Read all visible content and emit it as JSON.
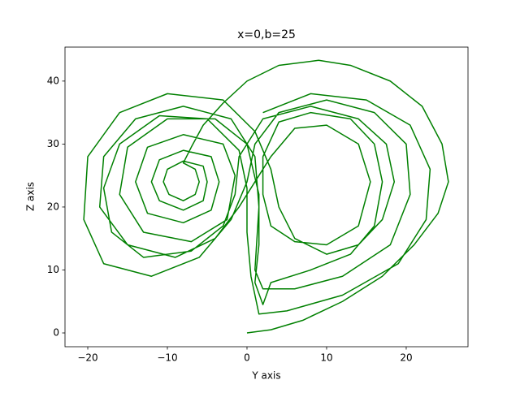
{
  "chart_data": {
    "type": "line",
    "title": "x=0,b=25",
    "xlabel": "Y axis",
    "ylabel": "Z axis",
    "color": "#008000",
    "x": [
      0,
      3,
      7,
      12,
      17,
      21,
      24,
      25.3,
      24.5,
      22,
      18,
      13,
      9,
      4,
      0,
      -3,
      -5.5,
      -7,
      -8,
      -6.5,
      -6,
      -6.5,
      -8,
      -9.8,
      -10.5,
      -10,
      -8,
      -5.5,
      -5,
      -5.5,
      -8,
      -11,
      -12,
      -11,
      -8,
      -4.5,
      -3.5,
      -4.5,
      -8,
      -12.5,
      -14,
      -12.5,
      -8,
      -3,
      -1.5,
      -2.5,
      -7,
      -13,
      -16,
      -15,
      -10,
      -4,
      0,
      1.5,
      1.5,
      1,
      2,
      3,
      8,
      13,
      16,
      17,
      16,
      13,
      8,
      4,
      2,
      2,
      3,
      6,
      10,
      14,
      15.5,
      14,
      10,
      6,
      3,
      1,
      -1,
      -4,
      -9,
      -15,
      -18.5,
      -18,
      -14,
      -8,
      -2,
      1,
      1.5,
      1,
      2,
      6,
      12,
      18,
      20.5,
      20,
      16,
      10,
      4,
      1,
      0,
      -2,
      -6,
      -12,
      -18,
      -20.5,
      -20,
      -16,
      -10,
      -3,
      1,
      3,
      4,
      6,
      10,
      14,
      17,
      18.5,
      17.5,
      14,
      8,
      2,
      -1,
      -1.5,
      -3,
      -7,
      -13,
      -17,
      -18,
      -16,
      -11,
      -5,
      -1,
      0,
      0,
      0.5,
      1.5,
      5,
      12,
      19,
      22.5,
      23,
      20.5,
      15,
      8,
      2
    ],
    "values": [
      0,
      0.5,
      2,
      5,
      9,
      14,
      19,
      24,
      30,
      36,
      40,
      42.5,
      43.3,
      42.5,
      40,
      36.5,
      33,
      29.5,
      27,
      26,
      24,
      22,
      21,
      22,
      24,
      26,
      27.3,
      26.5,
      24,
      21,
      19.5,
      21,
      24,
      27.5,
      29,
      28,
      24,
      19.5,
      17.5,
      19,
      24,
      29.5,
      31.5,
      30,
      25,
      18,
      14.5,
      16,
      22,
      29.5,
      34,
      34,
      30,
      22,
      14,
      8,
      4.5,
      8,
      10,
      12.5,
      17,
      24,
      30,
      34,
      35,
      33.5,
      28,
      22,
      17,
      14.5,
      14,
      17,
      24,
      30,
      33,
      32.5,
      28,
      24,
      20,
      15,
      12,
      14,
      20,
      28,
      34,
      36,
      34,
      28,
      20,
      10,
      7,
      7,
      9,
      14,
      22,
      30,
      35,
      37,
      35,
      30,
      24,
      18,
      12,
      9,
      11,
      18,
      28,
      35,
      38,
      37,
      32,
      26,
      20,
      15,
      12.5,
      14,
      18,
      24,
      30,
      34,
      36,
      34,
      28,
      22,
      17,
      13,
      12,
      16,
      23,
      30,
      34.5,
      34,
      29,
      23,
      16,
      9,
      3,
      3.5,
      6,
      11,
      18,
      26,
      33,
      37,
      38,
      35
    ],
    "xlim": [
      -22.86,
      27.76
    ],
    "ylim": [
      -2.19,
      45.4
    ],
    "xticks": [
      {
        "value": -20,
        "label": "−20"
      },
      {
        "value": -10,
        "label": "−10"
      },
      0,
      10,
      20
    ],
    "yticks": [
      0,
      10,
      20,
      30,
      40
    ]
  }
}
